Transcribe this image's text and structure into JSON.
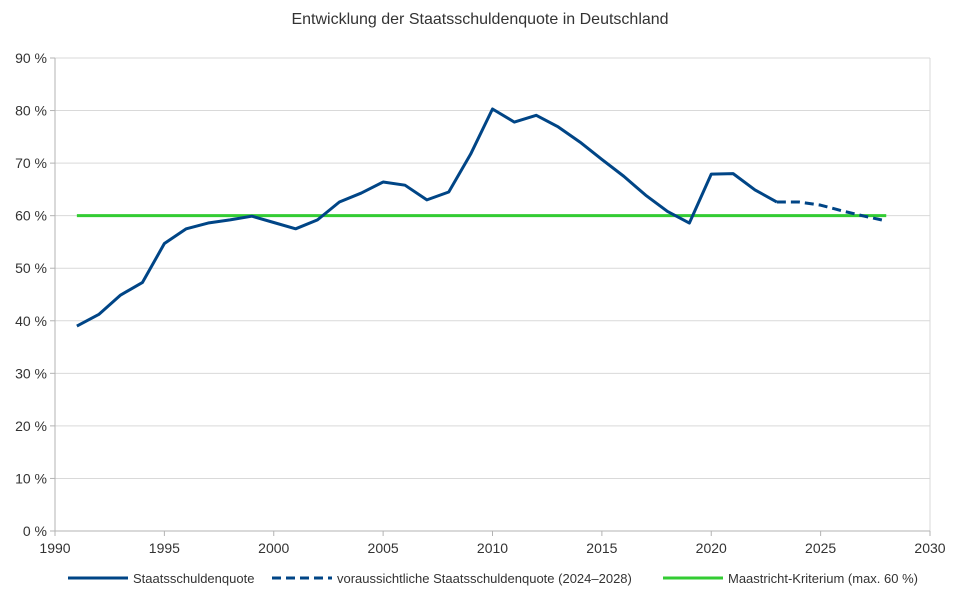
{
  "chart_data": {
    "type": "line",
    "title": "Entwicklung der Staatsschuldenquote in Deutschland",
    "xlabel": "",
    "ylabel": "",
    "xlim": [
      1990,
      2030
    ],
    "ylim": [
      0,
      90
    ],
    "x_ticks": [
      1990,
      1995,
      2000,
      2005,
      2010,
      2015,
      2020,
      2025,
      2030
    ],
    "y_ticks": [
      0,
      10,
      20,
      30,
      40,
      50,
      60,
      70,
      80,
      90
    ],
    "y_tick_labels": [
      "0 %",
      "10 %",
      "20 %",
      "30 %",
      "40 %",
      "50 %",
      "60 %",
      "70 %",
      "80 %",
      "90 %"
    ],
    "grid": "horizontal",
    "legend_position": "bottom",
    "series": [
      {
        "name": "Staatsschuldenquote",
        "color": "#004586",
        "style": "solid",
        "x": [
          1991,
          1992,
          1993,
          1994,
          1995,
          1996,
          1997,
          1998,
          1999,
          2000,
          2001,
          2002,
          2003,
          2004,
          2005,
          2006,
          2007,
          2008,
          2009,
          2010,
          2011,
          2012,
          2013,
          2014,
          2015,
          2016,
          2017,
          2018,
          2019,
          2020,
          2021,
          2022,
          2023
        ],
        "y": [
          39.0,
          41.2,
          44.9,
          47.3,
          54.7,
          57.5,
          58.6,
          59.2,
          59.9,
          58.7,
          57.5,
          59.2,
          62.6,
          64.3,
          66.4,
          65.8,
          63.0,
          64.5,
          71.7,
          80.3,
          77.8,
          79.1,
          76.9,
          74.0,
          70.7,
          67.5,
          63.9,
          60.8,
          58.6,
          67.9,
          68.0,
          64.9,
          62.6
        ]
      },
      {
        "name": "voraussichtliche Staatsschuldenquote (2024–2028)",
        "color": "#004586",
        "style": "dashed",
        "x": [
          2023,
          2024,
          2025,
          2026,
          2027,
          2028
        ],
        "y": [
          62.6,
          62.6,
          62.0,
          60.9,
          59.9,
          59.0
        ]
      },
      {
        "name": "Maastricht-Kriterium (max. 60 %)",
        "color": "#33cc33",
        "style": "solid",
        "x": [
          1991,
          2028
        ],
        "y": [
          60,
          60
        ]
      }
    ]
  }
}
